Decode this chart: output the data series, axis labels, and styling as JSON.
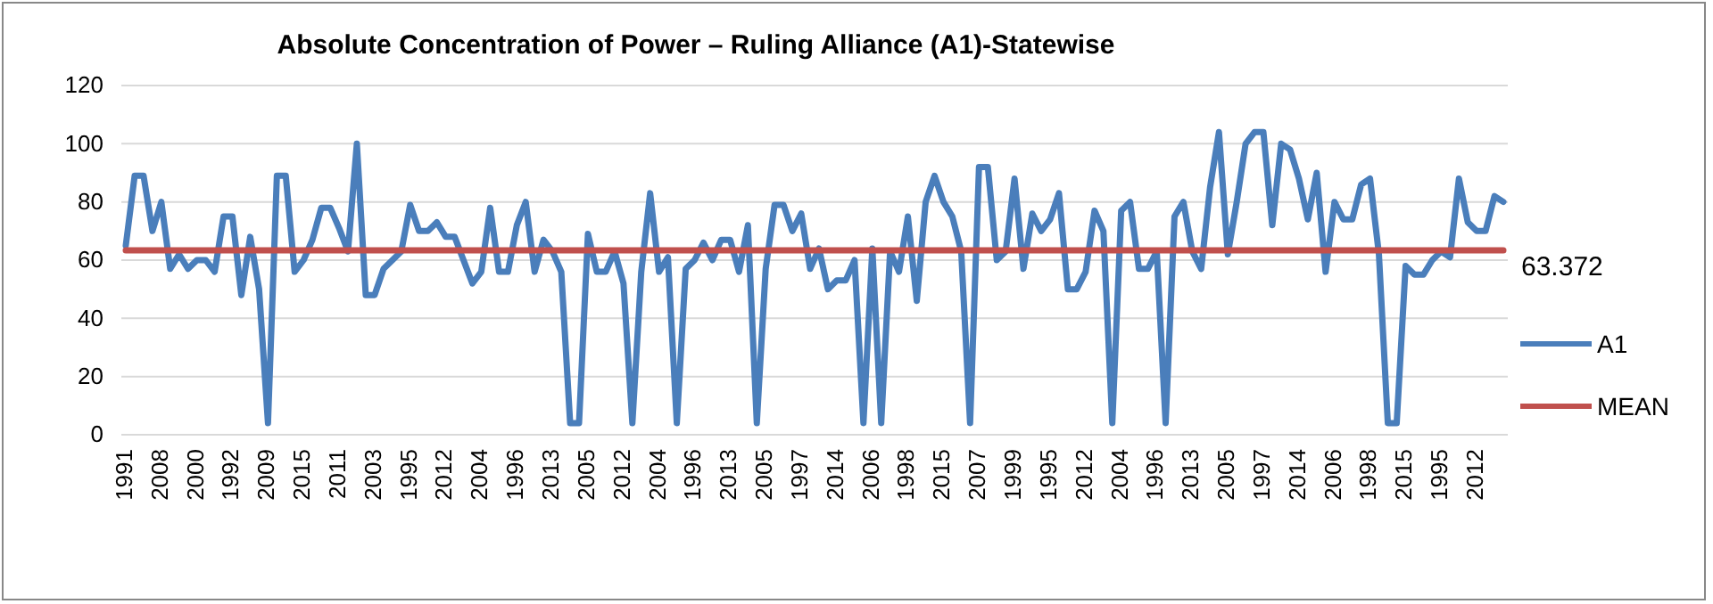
{
  "chart_data": {
    "type": "line",
    "title": "Absolute Concentration of Power – Ruling Alliance (A1)-Statewise",
    "categories": [
      "1991",
      null,
      null,
      null,
      "2008",
      null,
      null,
      null,
      "2000",
      null,
      null,
      null,
      "1992",
      null,
      null,
      null,
      "2009",
      null,
      null,
      null,
      "2015",
      null,
      null,
      null,
      "2011",
      null,
      null,
      null,
      "2003",
      null,
      null,
      null,
      "1995",
      null,
      null,
      null,
      "2012",
      null,
      null,
      null,
      "2004",
      null,
      null,
      null,
      "1996",
      null,
      null,
      null,
      "2013",
      null,
      null,
      null,
      "2005",
      null,
      null,
      null,
      "2012",
      null,
      null,
      null,
      "2004",
      null,
      null,
      null,
      "1996",
      null,
      null,
      null,
      "2013",
      null,
      null,
      null,
      "2005",
      null,
      null,
      null,
      "1997",
      null,
      null,
      null,
      "2014",
      null,
      null,
      null,
      "2006",
      null,
      null,
      null,
      "1998",
      null,
      null,
      null,
      "2015",
      null,
      null,
      null,
      "2007",
      null,
      null,
      null,
      "1999",
      null,
      null,
      null,
      "1995",
      null,
      null,
      null,
      "2012",
      null,
      null,
      null,
      "2004",
      null,
      null,
      null,
      "1996",
      null,
      null,
      null,
      "2013",
      null,
      null,
      null,
      "2005",
      null,
      null,
      null,
      "1997",
      null,
      null,
      null,
      "2014",
      null,
      null,
      null,
      "2006",
      null,
      null,
      null,
      "1998",
      null,
      null,
      null,
      "2015",
      null,
      null,
      null,
      "1995",
      null,
      null,
      null,
      "2012",
      null,
      null,
      null
    ],
    "series": [
      {
        "name": "A1",
        "color": "#4a7ebb",
        "values": [
          65,
          89,
          89,
          70,
          80,
          57,
          62,
          57,
          60,
          60,
          56,
          75,
          75,
          48,
          68,
          50,
          4,
          89,
          89,
          56,
          60,
          67,
          78,
          78,
          71,
          63,
          100,
          48,
          48,
          57,
          60,
          63,
          79,
          70,
          70,
          73,
          68,
          68,
          60,
          52,
          56,
          78,
          56,
          56,
          72,
          80,
          56,
          67,
          63,
          56,
          4,
          4,
          69,
          56,
          56,
          63,
          52,
          4,
          56,
          83,
          56,
          61,
          4,
          57,
          60,
          66,
          60,
          67,
          67,
          56,
          72,
          4,
          57,
          79,
          79,
          70,
          76,
          57,
          64,
          50,
          53,
          53,
          60,
          4,
          64,
          4,
          63,
          56,
          75,
          46,
          80,
          89,
          80,
          75,
          63,
          4,
          92,
          92,
          60,
          63,
          88,
          57,
          76,
          70,
          74,
          83,
          50,
          50,
          56,
          77,
          70,
          4,
          77,
          80,
          57,
          57,
          63,
          4,
          75,
          80,
          63,
          57,
          85,
          104,
          62,
          80,
          100,
          104,
          104,
          72,
          100,
          98,
          88,
          74,
          90,
          56,
          80,
          74,
          74,
          86,
          88,
          62,
          4,
          4,
          58,
          55,
          55,
          60,
          63,
          61,
          88,
          73,
          70,
          70,
          82,
          80
        ]
      },
      {
        "name": "MEAN",
        "color": "#c0504d",
        "values": [
          63.372,
          63.372,
          63.372,
          63.372,
          63.372,
          63.372,
          63.372,
          63.372,
          63.372,
          63.372,
          63.372,
          63.372,
          63.372,
          63.372,
          63.372,
          63.372,
          63.372,
          63.372,
          63.372,
          63.372,
          63.372,
          63.372,
          63.372,
          63.372,
          63.372,
          63.372,
          63.372,
          63.372,
          63.372,
          63.372,
          63.372,
          63.372,
          63.372,
          63.372,
          63.372,
          63.372,
          63.372,
          63.372,
          63.372,
          63.372,
          63.372,
          63.372,
          63.372,
          63.372,
          63.372,
          63.372,
          63.372,
          63.372,
          63.372,
          63.372,
          63.372,
          63.372,
          63.372,
          63.372,
          63.372,
          63.372,
          63.372,
          63.372,
          63.372,
          63.372,
          63.372,
          63.372,
          63.372,
          63.372,
          63.372,
          63.372,
          63.372,
          63.372,
          63.372,
          63.372,
          63.372,
          63.372,
          63.372,
          63.372,
          63.372,
          63.372,
          63.372,
          63.372,
          63.372,
          63.372,
          63.372,
          63.372,
          63.372,
          63.372,
          63.372,
          63.372,
          63.372,
          63.372,
          63.372,
          63.372,
          63.372,
          63.372,
          63.372,
          63.372,
          63.372,
          63.372,
          63.372,
          63.372,
          63.372,
          63.372,
          63.372,
          63.372,
          63.372,
          63.372,
          63.372,
          63.372,
          63.372,
          63.372,
          63.372,
          63.372,
          63.372,
          63.372,
          63.372,
          63.372,
          63.372,
          63.372,
          63.372,
          63.372,
          63.372,
          63.372,
          63.372,
          63.372,
          63.372,
          63.372,
          63.372,
          63.372,
          63.372,
          63.372,
          63.372,
          63.372,
          63.372,
          63.372,
          63.372,
          63.372,
          63.372,
          63.372,
          63.372,
          63.372,
          63.372,
          63.372,
          63.372,
          63.372,
          63.372,
          63.372,
          63.372,
          63.372,
          63.372,
          63.372,
          63.372,
          63.372,
          63.372,
          63.372,
          63.372,
          63.372,
          63.372,
          63.372
        ],
        "value_labels": [
          null,
          null,
          null,
          null,
          null,
          null,
          null,
          null,
          null,
          null,
          null,
          null,
          null,
          null,
          null,
          null,
          null,
          null,
          null,
          null,
          null,
          null,
          null,
          null,
          null,
          null,
          null,
          null,
          null,
          null,
          null,
          null,
          null,
          null,
          null,
          null,
          null,
          null,
          null,
          null,
          null,
          null,
          null,
          null,
          null,
          null,
          null,
          null,
          null,
          null,
          null,
          null,
          null,
          null,
          null,
          null,
          null,
          null,
          null,
          null,
          null,
          null,
          null,
          null,
          null,
          null,
          null,
          null,
          null,
          null,
          null,
          null,
          null,
          null,
          null,
          null,
          null,
          null,
          null,
          null,
          null,
          null,
          null,
          null,
          null,
          null,
          null,
          null,
          null,
          null,
          null,
          null,
          null,
          null,
          null,
          null,
          null,
          null,
          null,
          null,
          null,
          null,
          null,
          null,
          null,
          null,
          null,
          null,
          null,
          null,
          null,
          null,
          null,
          null,
          null,
          null,
          null,
          null,
          null,
          null,
          null,
          null,
          null,
          null,
          null,
          null,
          null,
          null,
          null,
          null,
          null,
          null,
          null,
          null,
          null,
          null,
          null,
          null,
          null,
          null,
          null,
          null,
          null,
          null,
          null,
          null,
          null,
          null,
          null,
          null,
          null,
          null,
          null,
          null,
          null,
          "63.372"
        ]
      }
    ],
    "ylim": [
      0,
      120
    ],
    "yticks": [
      0,
      20,
      40,
      60,
      80,
      100,
      120
    ],
    "grid": "y",
    "legend": "right",
    "marker": "none",
    "line_style": "solid"
  }
}
